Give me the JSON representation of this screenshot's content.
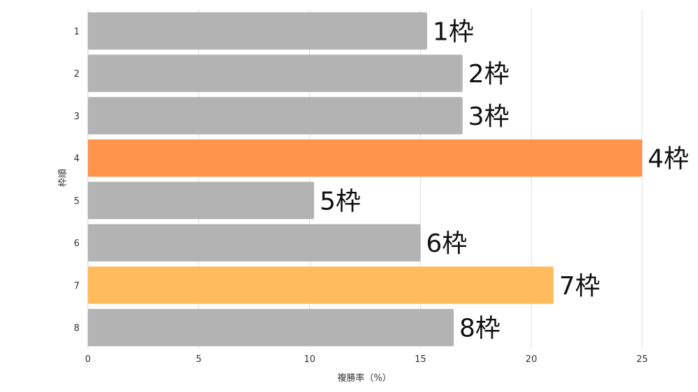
{
  "chart_data": {
    "type": "bar",
    "orientation": "horizontal",
    "xlabel": "複勝率（%）",
    "ylabel": "枠順",
    "xlim": [
      0,
      25
    ],
    "x_ticks": [
      "0",
      "5",
      "10",
      "15",
      "20",
      "25"
    ],
    "categories": [
      "1",
      "2",
      "3",
      "4",
      "5",
      "6",
      "7",
      "8"
    ],
    "values": [
      15.3,
      16.9,
      16.9,
      25.0,
      10.2,
      15.0,
      21.0,
      16.5
    ],
    "data_labels": [
      "1枠",
      "2枠",
      "3枠",
      "4枠",
      "5枠",
      "6枠",
      "7枠",
      "8枠"
    ],
    "colors": [
      "#b3b3b3",
      "#b3b3b3",
      "#b3b3b3",
      "#ff944d",
      "#b3b3b3",
      "#b3b3b3",
      "#ffbb5c",
      "#b3b3b3"
    ],
    "grid": true
  }
}
